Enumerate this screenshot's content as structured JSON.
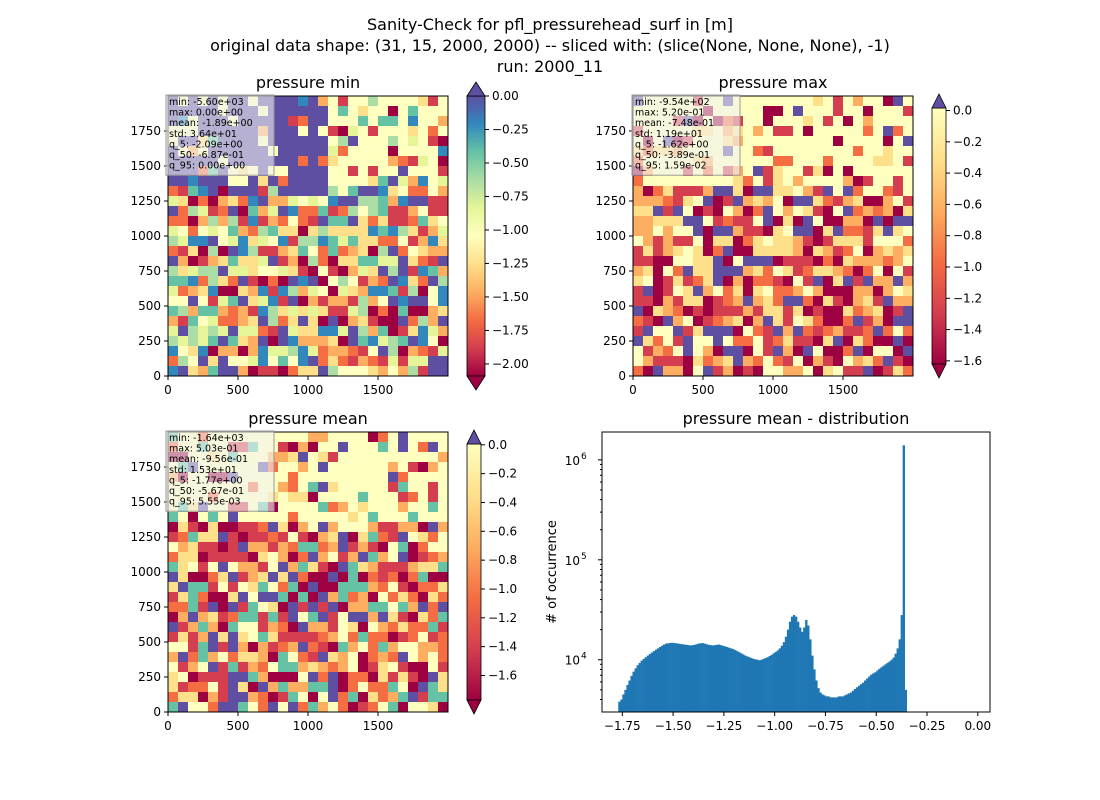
{
  "figure": {
    "title_lines": [
      "Sanity-Check for pfl_pressurehead_surf in [m]",
      "original data shape: (31, 15, 2000, 2000) -- sliced with: (slice(None, None, None), -1)",
      "run: 2000_11"
    ]
  },
  "chart_data": [
    {
      "type": "heatmap",
      "title": "pressure min",
      "x_ticks": [
        0,
        500,
        1000,
        1500
      ],
      "y_ticks": [
        0,
        250,
        500,
        750,
        1000,
        1250,
        1500,
        1750
      ],
      "xlim": [
        0,
        2000
      ],
      "ylim": [
        0,
        2000
      ],
      "colormap": "Spectral",
      "colorbar": {
        "ticks": [
          "0.00",
          "-0.25",
          "-0.50",
          "-0.75",
          "-1.00",
          "-1.25",
          "-1.50",
          "-1.75",
          "-2.00"
        ],
        "range": [
          -2.09,
          0.0
        ],
        "extend": "both"
      },
      "stats_lines": [
        "min: -5.60e+03",
        "max: 0.00e+00",
        "mean: -1.89e+00",
        "std: 3.64e+01",
        "q_5: -2.09e+00",
        "q_50: -6.87e-01",
        "q_95: 0.00e+00"
      ]
    },
    {
      "type": "heatmap",
      "title": "pressure max",
      "x_ticks": [
        0,
        500,
        1000,
        1500
      ],
      "y_ticks": [
        0,
        250,
        500,
        750,
        1000,
        1250,
        1500,
        1750
      ],
      "xlim": [
        0,
        2000
      ],
      "ylim": [
        0,
        2000
      ],
      "colormap": "Spectral",
      "colorbar": {
        "ticks": [
          "0.0",
          "-0.2",
          "-0.4",
          "-0.6",
          "-0.8",
          "-1.0",
          "-1.2",
          "-1.4",
          "-1.6"
        ],
        "range": [
          -1.62,
          0.016
        ],
        "extend": "both"
      },
      "stats_lines": [
        "min: -9.54e+02",
        "max: 5.20e-01",
        "mean: -7.48e-01",
        "std: 1.19e+01",
        "q_5: -1.62e+00",
        "q_50: -3.89e-01",
        "q_95: 1.59e-02"
      ]
    },
    {
      "type": "heatmap",
      "title": "pressure mean",
      "x_ticks": [
        0,
        500,
        1000,
        1500
      ],
      "y_ticks": [
        0,
        250,
        500,
        750,
        1000,
        1250,
        1500,
        1750
      ],
      "xlim": [
        0,
        2000
      ],
      "ylim": [
        0,
        2000
      ],
      "colormap": "Spectral",
      "colorbar": {
        "ticks": [
          "0.0",
          "-0.2",
          "-0.4",
          "-0.6",
          "-0.8",
          "-1.0",
          "-1.2",
          "-1.4",
          "-1.6"
        ],
        "range": [
          -1.77,
          0.0055
        ],
        "extend": "both"
      },
      "stats_lines": [
        "min: -1.64e+03",
        "max: 5.03e-01",
        "mean: -9.56e-01",
        "std: 1.53e+01",
        "q_5: -1.77e+00",
        "q_50: -5.67e-01",
        "q_95: 5.55e-03"
      ]
    },
    {
      "type": "bar",
      "title": "pressure mean - distribution",
      "ylabel": "# of occurrence",
      "xlabel": "",
      "yscale": "log",
      "xlim": [
        -1.85,
        0.06
      ],
      "ylim": [
        3000,
        1900000
      ],
      "x_ticks": [
        "-1.75",
        "-1.50",
        "-1.25",
        "-1.00",
        "-0.75",
        "-0.50",
        "-0.25",
        "0.00"
      ],
      "y_ticks": [
        {
          "base": "10",
          "exp": "4"
        },
        {
          "base": "10",
          "exp": "5"
        },
        {
          "base": "10",
          "exp": "6"
        }
      ],
      "color": "#1f77b4",
      "bin_start": -1.77,
      "bin_width": 0.01,
      "values": [
        3800,
        4000,
        4500,
        5000,
        5600,
        6200,
        6900,
        7600,
        8200,
        8800,
        9300,
        9800,
        10200,
        10600,
        11000,
        11400,
        11800,
        12200,
        12600,
        13000,
        13400,
        13800,
        14200,
        14500,
        14600,
        14700,
        14800,
        14700,
        14600,
        14500,
        14400,
        14300,
        14200,
        14100,
        14000,
        13900,
        14000,
        14100,
        14300,
        14500,
        14600,
        14700,
        14500,
        14300,
        14100,
        14000,
        13900,
        14000,
        14100,
        14200,
        14000,
        13800,
        13600,
        13400,
        13200,
        13000,
        12800,
        12500,
        12200,
        11900,
        11600,
        11300,
        11000,
        10800,
        10600,
        10400,
        10200,
        10100,
        10000,
        9900,
        10000,
        10200,
        10400,
        10600,
        10900,
        11200,
        11600,
        12000,
        12400,
        13000,
        13800,
        15000,
        17000,
        20000,
        24000,
        27000,
        28000,
        27000,
        24000,
        21000,
        19000,
        21000,
        25000,
        22000,
        16000,
        11000,
        8000,
        6200,
        5200,
        4700,
        4500,
        4400,
        4300,
        4300,
        4200,
        4200,
        4200,
        4200,
        4300,
        4300,
        4300,
        4400,
        4500,
        4600,
        4700,
        4900,
        5100,
        5300,
        5500,
        5700,
        5900,
        6200,
        6500,
        6800,
        7100,
        7300,
        7500,
        7800,
        8100,
        8400,
        8700,
        9000,
        9300,
        9600,
        10000,
        10500,
        11500,
        13000,
        16000,
        28000,
        1400000,
        5000
      ]
    }
  ]
}
